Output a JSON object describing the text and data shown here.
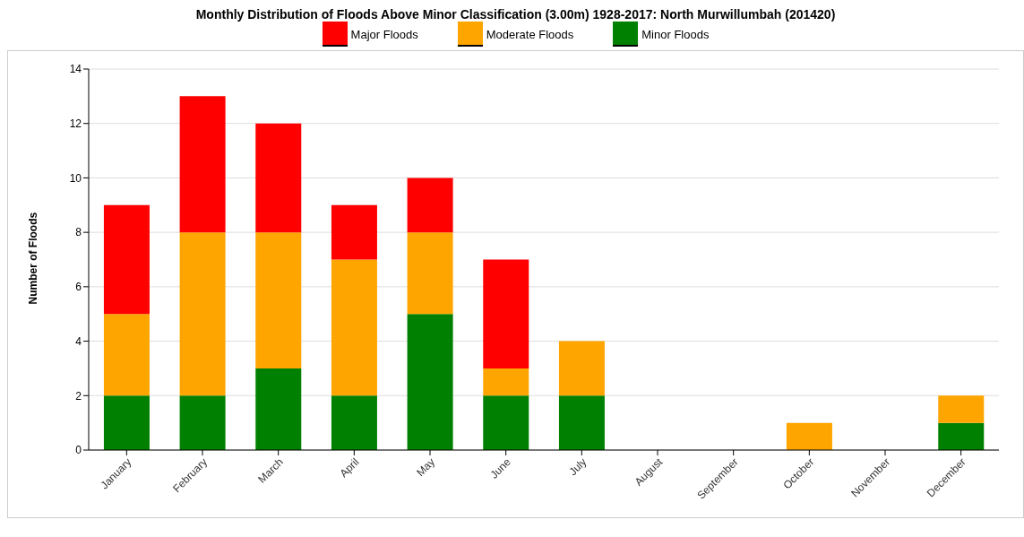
{
  "chart_data": {
    "type": "bar",
    "title": "Monthly Distribution of Floods Above Minor Classification (3.00m) 1928-2017: North Murwillumbah (201420)",
    "ylabel": "Number of Floods",
    "categories": [
      "January",
      "February",
      "March",
      "April",
      "May",
      "June",
      "July",
      "August",
      "September",
      "October",
      "November",
      "December"
    ],
    "stacked": true,
    "legend": "top",
    "grid": "y",
    "ylim": [
      0,
      14
    ],
    "yticks": [
      0,
      2,
      4,
      6,
      8,
      10,
      12,
      14
    ],
    "series": [
      {
        "name": "Minor Floods",
        "color": "#008000",
        "values": [
          2,
          2,
          3,
          2,
          5,
          2,
          2,
          0,
          0,
          0,
          0,
          1
        ]
      },
      {
        "name": "Moderate Floods",
        "color": "#ffa500",
        "values": [
          3,
          6,
          5,
          5,
          3,
          1,
          2,
          0,
          0,
          1,
          0,
          1
        ]
      },
      {
        "name": "Major Floods",
        "color": "#ff0000",
        "values": [
          4,
          5,
          4,
          2,
          2,
          4,
          0,
          0,
          0,
          0,
          0,
          0
        ]
      }
    ]
  }
}
